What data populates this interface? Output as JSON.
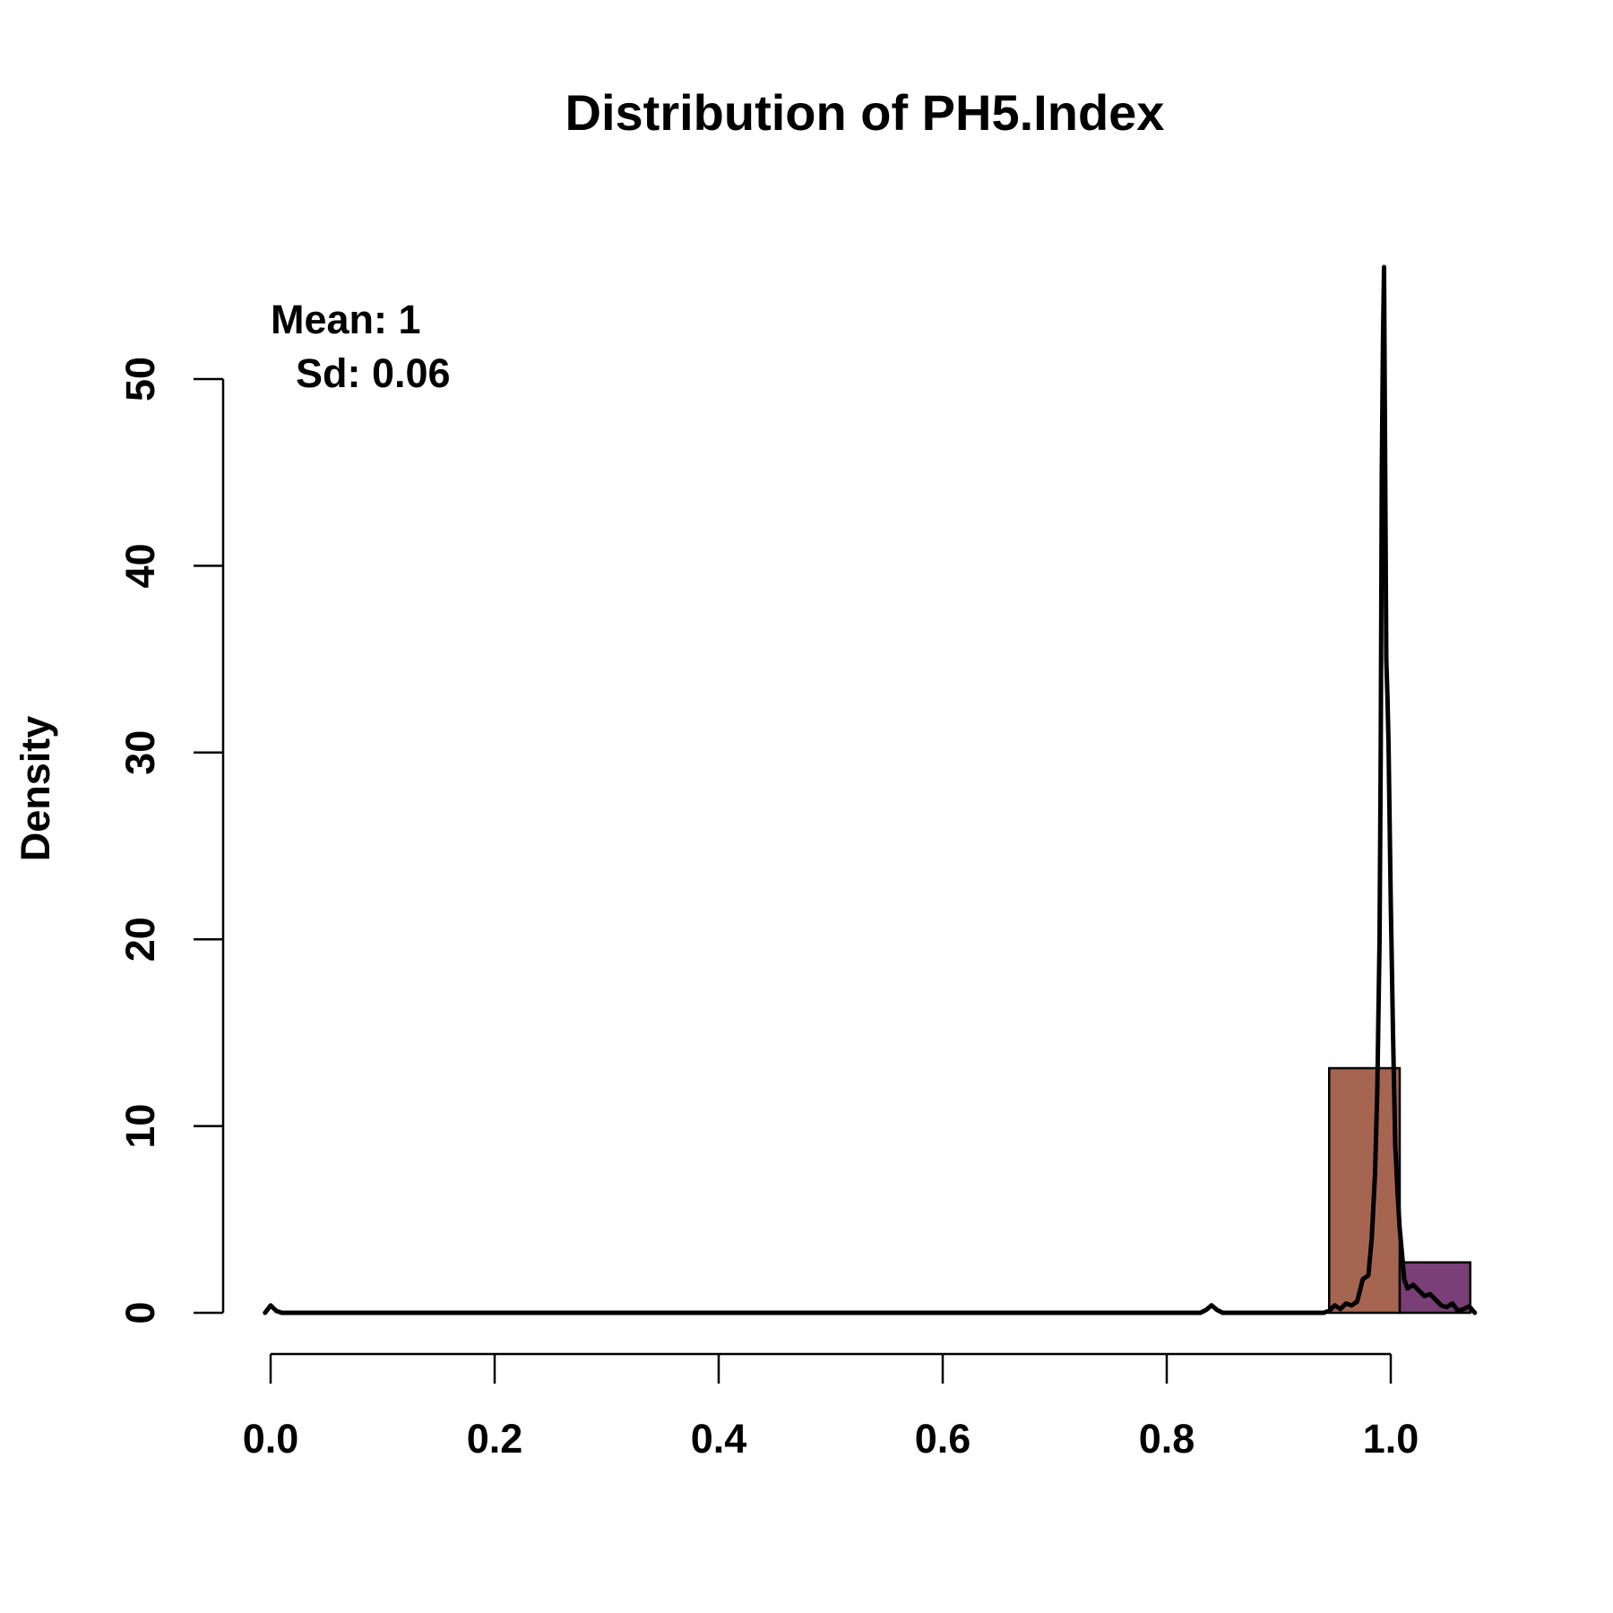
{
  "chart_data": {
    "type": "bar",
    "title": "Distribution of PH5.Index",
    "xlabel": "",
    "ylabel": "Density",
    "xlim": [
      0,
      1.06
    ],
    "ylim": [
      0,
      55
    ],
    "x_ticks": [
      "0.0",
      "0.2",
      "0.4",
      "0.6",
      "0.8",
      "1.0"
    ],
    "y_ticks": [
      "0",
      "10",
      "20",
      "30",
      "40",
      "50"
    ],
    "annotation": {
      "mean_label": "Mean: 1",
      "sd_label": "Sd: 0.06"
    },
    "bins": [
      {
        "x0": 0.945,
        "x1": 1.008,
        "density": 13.1,
        "color": "#a66550"
      },
      {
        "x0": 1.008,
        "x1": 1.071,
        "density": 2.7,
        "color": "#7a3f77"
      }
    ],
    "density_curve": {
      "color": "#000000",
      "x": [
        -0.005,
        0.0,
        0.005,
        0.01,
        0.02,
        0.1,
        0.4,
        0.83,
        0.835,
        0.84,
        0.845,
        0.85,
        0.94,
        0.945,
        0.95,
        0.955,
        0.96,
        0.965,
        0.97,
        0.975,
        0.98,
        0.983,
        0.986,
        0.988,
        0.99,
        0.991,
        0.992,
        0.993,
        0.994,
        0.995,
        0.996,
        0.997,
        0.998,
        1.0,
        1.002,
        1.004,
        1.006,
        1.008,
        1.01,
        1.012,
        1.015,
        1.02,
        1.025,
        1.03,
        1.035,
        1.04,
        1.045,
        1.05,
        1.055,
        1.06,
        1.065,
        1.07,
        1.075
      ],
      "y": [
        0.0,
        0.4,
        0.1,
        0.0,
        0.0,
        0.0,
        0.0,
        0.0,
        0.15,
        0.4,
        0.15,
        0.0,
        0.0,
        0.1,
        0.4,
        0.2,
        0.5,
        0.4,
        0.6,
        1.8,
        2.0,
        4.0,
        7.5,
        12.0,
        20.0,
        30.0,
        45.0,
        52.0,
        56.0,
        45.0,
        35.0,
        33.0,
        30.5,
        22.0,
        15.0,
        9.0,
        6.5,
        4.5,
        3.2,
        1.8,
        1.3,
        1.5,
        1.2,
        0.9,
        1.0,
        0.7,
        0.4,
        0.3,
        0.5,
        0.1,
        0.2,
        0.35,
        0.0
      ]
    }
  }
}
